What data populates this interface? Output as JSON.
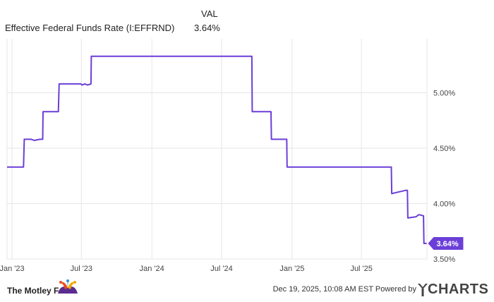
{
  "legend": {
    "header": "VAL",
    "series_name": "Effective Federal Funds Rate (I:EFFRND)",
    "series_value": "3.64%"
  },
  "colors": {
    "line": "#6b3fd8",
    "grid": "#e6e6e6",
    "axis_text": "#444444",
    "badge_bg": "#6b3fd8",
    "badge_text": "#ffffff"
  },
  "chart_data": {
    "type": "line",
    "title": "",
    "xlabel": "",
    "ylabel": "",
    "ylim": [
      3.5,
      5.5
    ],
    "yticks": [
      {
        "value": 3.5,
        "label": "3.50%"
      },
      {
        "value": 4.0,
        "label": "4.00%"
      },
      {
        "value": 4.5,
        "label": "4.50%"
      },
      {
        "value": 5.0,
        "label": "5.00%"
      }
    ],
    "xticks": [
      "Jan '23",
      "Jul '23",
      "Jan '24",
      "Jul '24",
      "Jan '25",
      "Jul '25"
    ],
    "grid": true,
    "series": [
      {
        "name": "Effective Federal Funds Rate (I:EFFRND)",
        "last_value_label": "3.64%",
        "points": [
          [
            "2022-12-19",
            4.33
          ],
          [
            "2023-01-31",
            4.33
          ],
          [
            "2023-02-02",
            4.58
          ],
          [
            "2023-02-20",
            4.58
          ],
          [
            "2023-02-28",
            4.57
          ],
          [
            "2023-03-15",
            4.58
          ],
          [
            "2023-03-22",
            4.58
          ],
          [
            "2023-03-23",
            4.83
          ],
          [
            "2023-05-02",
            4.83
          ],
          [
            "2023-05-04",
            5.08
          ],
          [
            "2023-06-30",
            5.08
          ],
          [
            "2023-07-03",
            5.07
          ],
          [
            "2023-07-10",
            5.08
          ],
          [
            "2023-07-17",
            5.07
          ],
          [
            "2023-07-26",
            5.08
          ],
          [
            "2023-07-27",
            5.33
          ],
          [
            "2024-09-18",
            5.33
          ],
          [
            "2024-09-19",
            4.83
          ],
          [
            "2024-11-07",
            4.83
          ],
          [
            "2024-11-08",
            4.58
          ],
          [
            "2024-12-18",
            4.58
          ],
          [
            "2024-12-19",
            4.33
          ],
          [
            "2025-09-17",
            4.33
          ],
          [
            "2025-09-18",
            4.09
          ],
          [
            "2025-09-30",
            4.1
          ],
          [
            "2025-10-25",
            4.12
          ],
          [
            "2025-10-29",
            4.12
          ],
          [
            "2025-10-30",
            3.87
          ],
          [
            "2025-11-20",
            3.88
          ],
          [
            "2025-11-28",
            3.9
          ],
          [
            "2025-12-10",
            3.89
          ],
          [
            "2025-12-11",
            3.64
          ],
          [
            "2025-12-18",
            3.64
          ]
        ]
      }
    ]
  },
  "footer": {
    "brand": "The Motley Fool",
    "credit": "Dec 19, 2025, 10:08 AM EST Powered by",
    "provider": "CHARTS"
  }
}
